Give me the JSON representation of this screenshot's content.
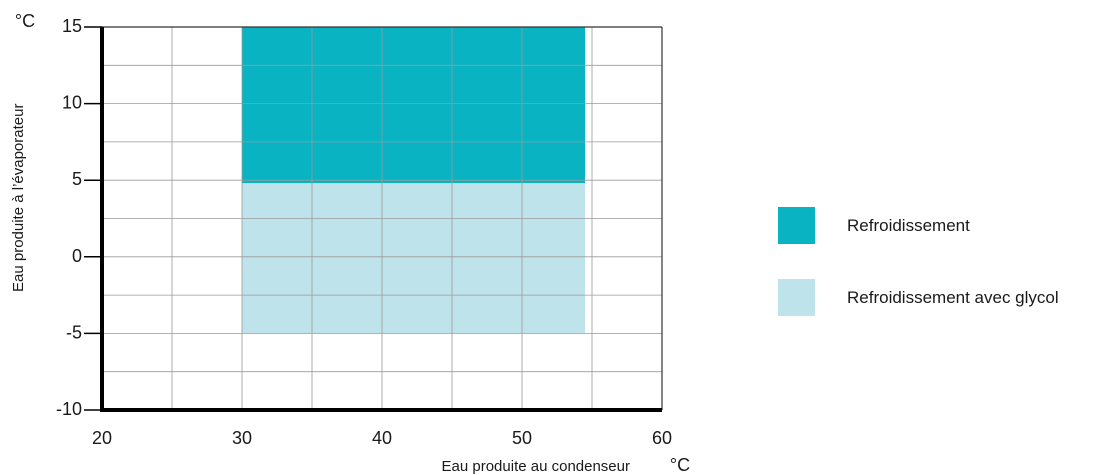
{
  "chart_data": {
    "type": "area",
    "xlabel": "Eau produite au condenseur",
    "ylabel": "Eau produite à l’évaporateur",
    "x_unit": "°C",
    "y_unit": "°C",
    "xlim": [
      20,
      60
    ],
    "ylim": [
      -10,
      15
    ],
    "x_ticks": [
      "20",
      "30",
      "40",
      "50",
      "60"
    ],
    "y_ticks": [
      "15",
      "10",
      "5",
      "0",
      "-5",
      "-10"
    ],
    "grid": true,
    "legend_position": "right",
    "regions": [
      {
        "name": "Refroidissement",
        "color": "#0ab3c1",
        "x_range": [
          30,
          54.5
        ],
        "y_range": [
          4.8,
          15
        ]
      },
      {
        "name": "Refroidissement avec glycol",
        "color": "#bfe3ea",
        "x_range": [
          30,
          54.5
        ],
        "y_range": [
          -5,
          4.8
        ]
      }
    ]
  }
}
